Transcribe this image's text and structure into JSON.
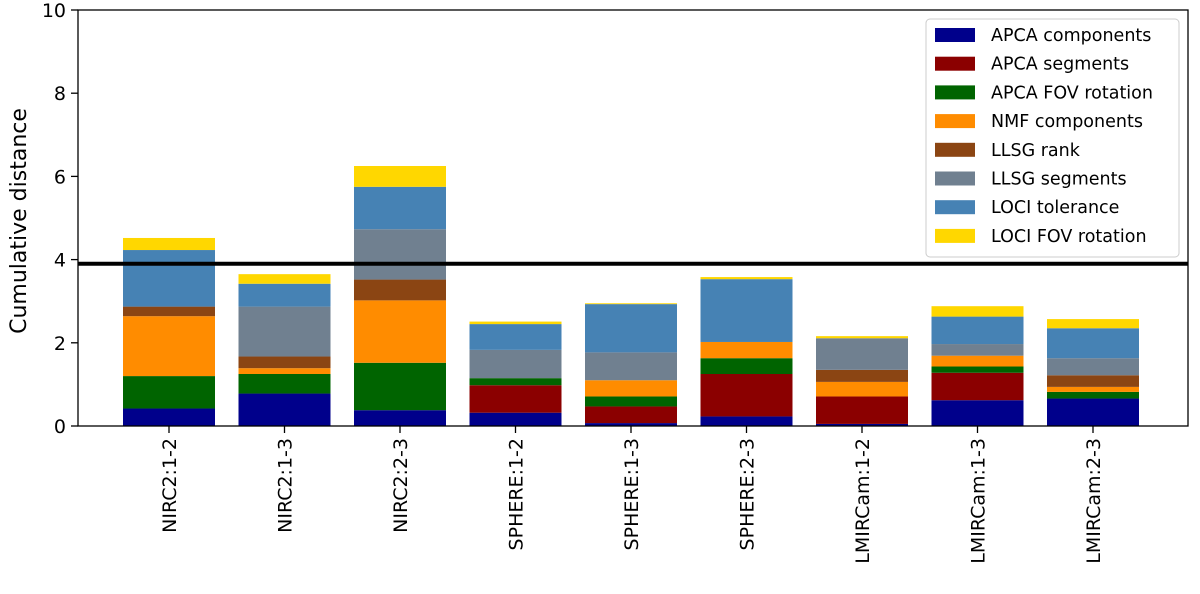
{
  "chart_data": {
    "type": "bar",
    "stacked": true,
    "title": "",
    "xlabel": "",
    "ylabel": "Cumulative distance",
    "ylim": [
      0,
      10
    ],
    "yticks": [
      0,
      2,
      4,
      6,
      8,
      10
    ],
    "grid": false,
    "legend_position": "top-right",
    "threshold": 3.9,
    "categories": [
      "NIRC2:1-2",
      "NIRC2:1-3",
      "NIRC2:2-3",
      "SPHERE:1-2",
      "SPHERE:1-3",
      "SPHERE:2-3",
      "LMIRCam:1-2",
      "LMIRCam:1-3",
      "LMIRCam:2-3"
    ],
    "series": [
      {
        "name": "APCA components",
        "color": "#00008b",
        "values": [
          0.42,
          0.78,
          0.38,
          0.32,
          0.07,
          0.23,
          0.05,
          0.62,
          0.66
        ]
      },
      {
        "name": "APCA segments",
        "color": "#8b0000",
        "values": [
          0.0,
          0.0,
          0.0,
          0.66,
          0.4,
          1.02,
          0.66,
          0.66,
          0.0
        ]
      },
      {
        "name": "APCA FOV rotation",
        "color": "#006400",
        "values": [
          0.78,
          0.47,
          1.14,
          0.17,
          0.24,
          0.38,
          0.0,
          0.15,
          0.16
        ]
      },
      {
        "name": "NMF components",
        "color": "#ff8c00",
        "values": [
          1.44,
          0.14,
          1.5,
          0.0,
          0.39,
          0.39,
          0.35,
          0.26,
          0.12
        ]
      },
      {
        "name": "LLSG rank",
        "color": "#8b4513",
        "values": [
          0.23,
          0.28,
          0.5,
          0.0,
          0.0,
          0.0,
          0.29,
          0.0,
          0.28
        ]
      },
      {
        "name": "LLSG segments",
        "color": "#708090",
        "values": [
          0.0,
          1.2,
          1.21,
          0.68,
          0.67,
          0.0,
          0.76,
          0.28,
          0.41
        ]
      },
      {
        "name": "LOCI tolerance",
        "color": "#4682b4",
        "values": [
          1.36,
          0.55,
          1.02,
          0.62,
          1.16,
          1.51,
          0.0,
          0.66,
          0.72
        ]
      },
      {
        "name": "LOCI FOV rotation",
        "color": "#ffd700",
        "values": [
          0.29,
          0.23,
          0.5,
          0.06,
          0.02,
          0.05,
          0.05,
          0.25,
          0.22
        ]
      }
    ]
  }
}
